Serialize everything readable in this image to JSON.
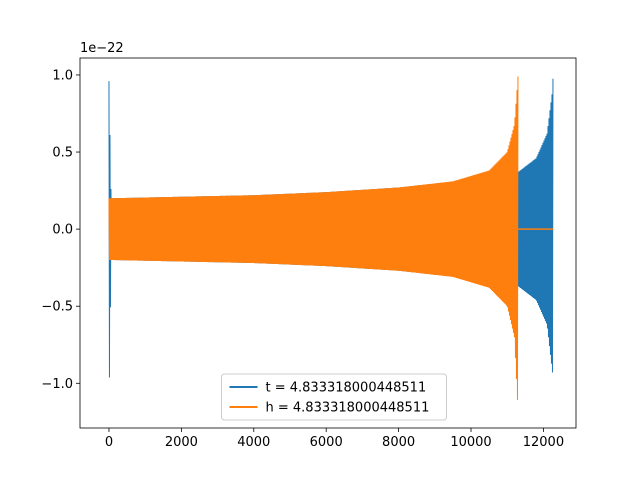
{
  "chart_data": {
    "type": "line",
    "title": "",
    "xlabel": "",
    "ylabel": "",
    "y_offset_label": "1e−22",
    "xlim": [
      -800,
      12900
    ],
    "ylim": [
      -1.29,
      1.11
    ],
    "x_ticks": [
      0,
      2000,
      4000,
      6000,
      8000,
      10000,
      12000
    ],
    "x_tick_labels": [
      "0",
      "2000",
      "4000",
      "6000",
      "8000",
      "10000",
      "12000"
    ],
    "y_ticks": [
      -1.0,
      -0.5,
      0.0,
      0.5,
      1.0
    ],
    "y_tick_labels": [
      "−1.0",
      "−0.5",
      "0.0",
      "0.5",
      "1.0"
    ],
    "grid": false,
    "legend_position": "lower-center",
    "series": [
      {
        "name": "t = 4.833318000448511",
        "color": "#1f77b4",
        "envelope": [
          {
            "x": 0,
            "upper": 0.96,
            "lower": -1.19
          },
          {
            "x": 60,
            "upper": 0.2,
            "lower": -0.2
          },
          {
            "x": 2000,
            "upper": 0.21,
            "lower": -0.21
          },
          {
            "x": 4000,
            "upper": 0.22,
            "lower": -0.22
          },
          {
            "x": 6000,
            "upper": 0.24,
            "lower": -0.24
          },
          {
            "x": 8000,
            "upper": 0.27,
            "lower": -0.27
          },
          {
            "x": 10000,
            "upper": 0.32,
            "lower": -0.32
          },
          {
            "x": 11300,
            "upper": 0.37,
            "lower": -0.37
          },
          {
            "x": 11800,
            "upper": 0.46,
            "lower": -0.46
          },
          {
            "x": 12100,
            "upper": 0.62,
            "lower": -0.62
          },
          {
            "x": 12250,
            "upper": 0.9,
            "lower": -0.93
          },
          {
            "x": 12270,
            "upper": 1.01,
            "lower": -0.93
          }
        ]
      },
      {
        "name": "h = 4.833318000448511",
        "color": "#ff7f0e",
        "envelope": [
          {
            "x": 0,
            "upper": 0.2,
            "lower": -0.2
          },
          {
            "x": 2000,
            "upper": 0.21,
            "lower": -0.21
          },
          {
            "x": 4000,
            "upper": 0.22,
            "lower": -0.22
          },
          {
            "x": 6000,
            "upper": 0.24,
            "lower": -0.24
          },
          {
            "x": 8000,
            "upper": 0.27,
            "lower": -0.27
          },
          {
            "x": 9500,
            "upper": 0.31,
            "lower": -0.31
          },
          {
            "x": 10500,
            "upper": 0.38,
            "lower": -0.38
          },
          {
            "x": 11000,
            "upper": 0.5,
            "lower": -0.5
          },
          {
            "x": 11200,
            "upper": 0.68,
            "lower": -0.7
          },
          {
            "x": 11300,
            "upper": 1.0,
            "lower": -1.19
          }
        ],
        "tail": {
          "x_start": 11300,
          "x_end": 12270,
          "value": 0.0
        }
      }
    ]
  }
}
